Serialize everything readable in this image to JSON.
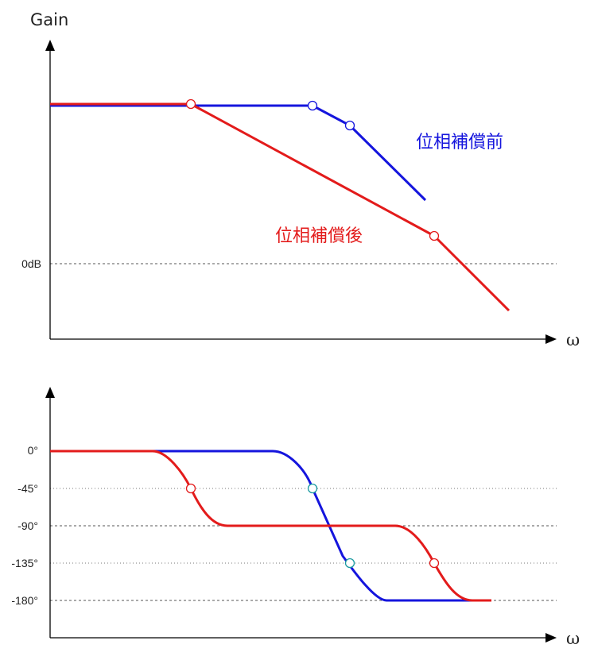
{
  "colors": {
    "before": "#1515dd",
    "after": "#e31b1b",
    "axis": "#000000",
    "grid": "#555555"
  },
  "gain_plot": {
    "y_title": "Gain",
    "x_label": "ω",
    "zero_label": "0dB",
    "label_before": "位相補償前",
    "label_after": "位相補償後"
  },
  "phase_plot": {
    "x_label": "ω",
    "ticks": [
      "0°",
      "-45°",
      "-90°",
      "-135°",
      "-180°"
    ]
  },
  "chart_data": [
    {
      "type": "line",
      "title": "",
      "ylabel": "Gain",
      "xlabel": "ω",
      "y_reference": "0dB",
      "scale": "log-log (schematic Bode magnitude)",
      "series": [
        {
          "name": "位相補償前",
          "color": "#1515dd",
          "x": [
            0,
            3,
            4,
            6
          ],
          "y": [
            5,
            5,
            4,
            0
          ],
          "markers": [
            3,
            4
          ]
        },
        {
          "name": "位相補償後",
          "color": "#e31b1b",
          "x": [
            0,
            1,
            5,
            7
          ],
          "y": [
            5,
            5,
            0.5,
            -2
          ],
          "markers": [
            1,
            5
          ]
        }
      ],
      "note": "slopes: -20 dB/dec after first corner, -40 dB/dec after second corner"
    },
    {
      "type": "line",
      "title": "",
      "ylabel": "",
      "xlabel": "ω",
      "yticks": [
        0,
        -45,
        -90,
        -135,
        -180
      ],
      "ylim": [
        -180,
        0
      ],
      "series": [
        {
          "name": "位相補償前",
          "color": "#1515dd",
          "corners": [
            3,
            4
          ],
          "x_range": [
            0,
            6
          ],
          "markers": [
            {
              "x": 3,
              "y": -45
            },
            {
              "x": 4,
              "y": -135
            }
          ]
        },
        {
          "name": "位相補償後",
          "color": "#e31b1b",
          "corners": [
            1,
            5
          ],
          "x_range": [
            0,
            6
          ],
          "markers": [
            {
              "x": 1,
              "y": -45
            },
            {
              "x": 5,
              "y": -135
            }
          ]
        }
      ]
    }
  ]
}
